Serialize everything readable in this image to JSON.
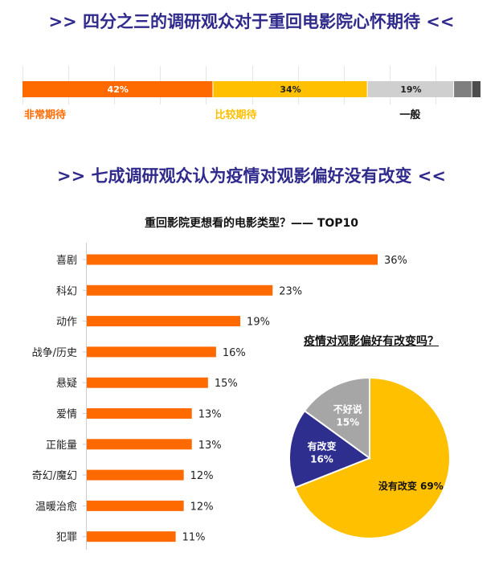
{
  "section1": {
    "title": ">> 四分之三的调研观众对于重回电影院心怀期待 <<"
  },
  "section2": {
    "title": ">> 七成调研观众认为疫情对观影偏好没有改变 <<"
  },
  "chart_data": [
    {
      "type": "bar",
      "orientation": "stacked-horizontal",
      "title": "",
      "segments": [
        {
          "name": "非常期待",
          "value": 42,
          "label": "42%",
          "color": "#ff6a00",
          "show_name": true
        },
        {
          "name": "比较期待",
          "value": 34,
          "label": "34%",
          "color": "#ffc000",
          "show_name": true
        },
        {
          "name": "一般",
          "value": 19,
          "label": "19%",
          "color": "#cfcfcf",
          "show_name": true
        },
        {
          "name": "",
          "value": 4,
          "label": "",
          "color": "#7f7f7f",
          "show_name": false
        },
        {
          "name": "",
          "value": 2,
          "label": "",
          "color": "#4d4d4d",
          "show_name": false
        }
      ],
      "label_colors": {
        "非常期待": "#ff6a00",
        "比较期待": "#ffc000",
        "一般": "#111111"
      }
    },
    {
      "type": "bar",
      "orientation": "horizontal",
      "title": "重回影院更想看的电影类型？—— TOP10",
      "categories": [
        "喜剧",
        "科幻",
        "动作",
        "战争/历史",
        "悬疑",
        "爱情",
        "正能量",
        "奇幻/魔幻",
        "温暖治愈",
        "犯罪"
      ],
      "values": [
        36,
        23,
        19,
        16,
        15,
        13,
        13,
        12,
        12,
        11
      ],
      "value_labels": [
        "36%",
        "23%",
        "19%",
        "16%",
        "15%",
        "13%",
        "13%",
        "12%",
        "12%",
        "11%"
      ],
      "xlim": [
        0,
        36
      ],
      "color": "#ff6a00"
    },
    {
      "type": "pie",
      "title": "疫情对观影偏好有改变吗？",
      "slices": [
        {
          "label": "没有改变",
          "value": 69,
          "pct": "69%",
          "color": "#ffc000"
        },
        {
          "label": "有改变",
          "value": 16,
          "pct": "16%",
          "color": "#2e2e8f"
        },
        {
          "label": "不好说",
          "value": 15,
          "pct": "15%",
          "color": "#a6a6a6"
        }
      ]
    }
  ]
}
